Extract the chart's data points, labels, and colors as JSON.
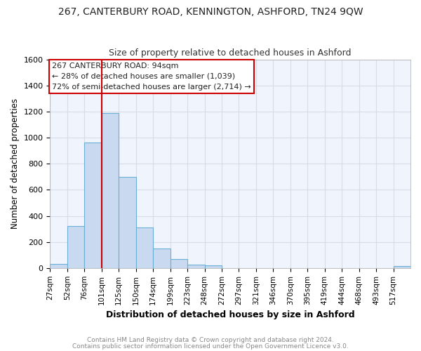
{
  "title": "267, CANTERBURY ROAD, KENNINGTON, ASHFORD, TN24 9QW",
  "subtitle": "Size of property relative to detached houses in Ashford",
  "xlabel": "Distribution of detached houses by size in Ashford",
  "ylabel": "Number of detached properties",
  "bin_labels": [
    "27sqm",
    "52sqm",
    "76sqm",
    "101sqm",
    "125sqm",
    "150sqm",
    "174sqm",
    "199sqm",
    "223sqm",
    "248sqm",
    "272sqm",
    "297sqm",
    "321sqm",
    "346sqm",
    "370sqm",
    "395sqm",
    "419sqm",
    "444sqm",
    "468sqm",
    "493sqm",
    "517sqm"
  ],
  "bar_heights": [
    30,
    320,
    960,
    1190,
    700,
    310,
    150,
    70,
    25,
    20,
    0,
    0,
    0,
    0,
    0,
    0,
    0,
    0,
    0,
    0,
    15
  ],
  "bar_color": "#c8d9f0",
  "bar_edge_color": "#6baed6",
  "background_color": "#ffffff",
  "plot_bg_color": "#f0f4fc",
  "grid_color": "#d8dce8",
  "ylim": [
    0,
    1600
  ],
  "property_size_bin": 3,
  "red_line_color": "#cc0000",
  "annotation_text_line1": "267 CANTERBURY ROAD: 94sqm",
  "annotation_text_line2": "← 28% of detached houses are smaller (1,039)",
  "annotation_text_line3": "72% of semi-detached houses are larger (2,714) →",
  "annotation_box_color": "#ffffff",
  "annotation_box_edge": "#cc0000",
  "footer_line1": "Contains HM Land Registry data © Crown copyright and database right 2024.",
  "footer_line2": "Contains public sector information licensed under the Open Government Licence v3.0.",
  "footer_color": "#888888",
  "title_fontsize": 10,
  "subtitle_fontsize": 9
}
